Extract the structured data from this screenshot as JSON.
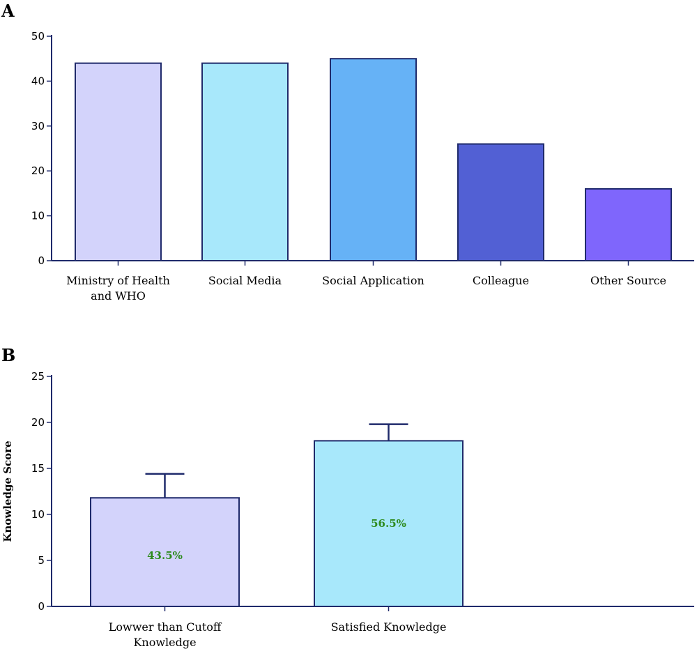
{
  "panels": {
    "a_letter": "A",
    "b_letter": "B"
  },
  "chart_data": [
    {
      "type": "bar",
      "panel": "A",
      "categories": [
        [
          "Ministry of Health",
          "and WHO"
        ],
        [
          "Social Media"
        ],
        [
          "Social Application"
        ],
        [
          "Colleague"
        ],
        [
          "Other Source"
        ]
      ],
      "values": [
        44,
        44,
        45,
        26,
        16
      ],
      "colors": [
        "#d3d3fb",
        "#a8e8fb",
        "#66b2f6",
        "#5260d4",
        "#7f66fc"
      ],
      "ylim": [
        0,
        50
      ],
      "yticks": [
        0,
        10,
        20,
        30,
        40,
        50
      ],
      "xlabel": "",
      "ylabel": "",
      "grid": false
    },
    {
      "type": "bar",
      "panel": "B",
      "categories": [
        [
          "Lowwer than Cutoff",
          "Knowledge"
        ],
        [
          "Satisfied Knowledge"
        ]
      ],
      "values": [
        11.8,
        18.0
      ],
      "error_upper": [
        14.4,
        19.8
      ],
      "bar_labels": [
        "43.5%",
        "56.5%"
      ],
      "bar_label_color": "#2e8b1e",
      "colors": [
        "#d3d3fb",
        "#a8e8fb"
      ],
      "ylim": [
        0,
        25
      ],
      "yticks": [
        0,
        5,
        10,
        15,
        20,
        25
      ],
      "xlabel": "",
      "ylabel": "Knowledge Score",
      "grid": false
    }
  ]
}
